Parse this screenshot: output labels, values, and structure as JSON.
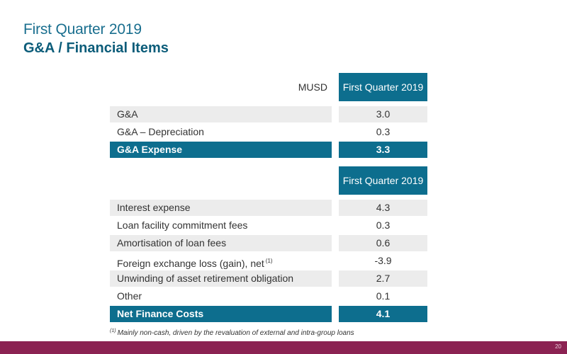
{
  "header": {
    "line1": "First Quarter 2019",
    "line2": "G&A / Financial Items"
  },
  "ga_table": {
    "unit": "MUSD",
    "column_header": "First Quarter 2019",
    "rows": [
      {
        "label": "G&A",
        "value": "3.0"
      },
      {
        "label": "G&A – Depreciation",
        "value": "0.3"
      }
    ],
    "total": {
      "label": "G&A Expense",
      "value": "3.3"
    }
  },
  "finance_table": {
    "column_header": "First Quarter 2019",
    "rows": [
      {
        "label": "Interest expense",
        "value": "4.3"
      },
      {
        "label": "Loan facility commitment fees",
        "value": "0.3"
      },
      {
        "label": "Amortisation of loan fees",
        "value": "0.6"
      },
      {
        "label": "Foreign exchange loss (gain), net",
        "sup": "(1)",
        "value": "-3.9"
      },
      {
        "label": "Unwinding of asset retirement obligation",
        "value": "2.7"
      },
      {
        "label": "Other",
        "value": "0.1"
      }
    ],
    "total": {
      "label": "Net Finance Costs",
      "value": "4.1"
    }
  },
  "footnote": {
    "marker": "(1)",
    "text": "Mainly non-cash, driven by the revaluation of external and intra-group loans"
  },
  "page_number": "20",
  "colors": {
    "primary": "#0d6e8e",
    "title_light": "#1a6f8f",
    "footer": "#8b2252",
    "row_shade": "#ececec"
  }
}
